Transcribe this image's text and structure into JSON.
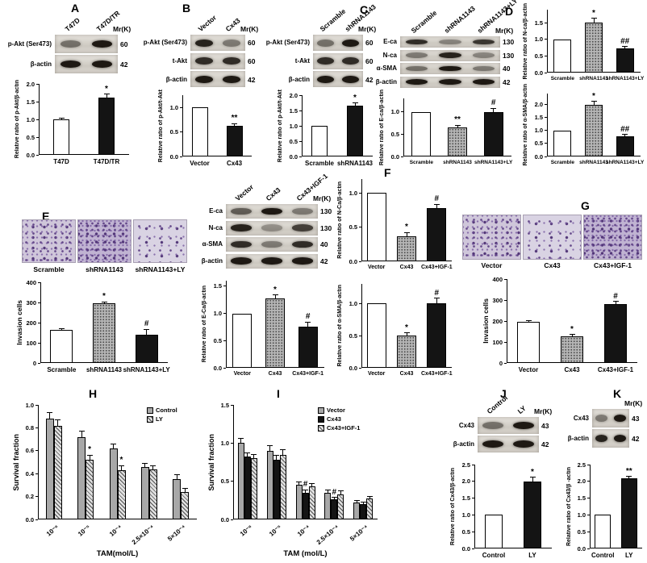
{
  "panel_letters": {
    "A": "A",
    "B": "B",
    "C": "C",
    "D": "D",
    "E": "E",
    "F": "F",
    "G": "G",
    "H": "H",
    "I": "I",
    "J": "J",
    "K": "K"
  },
  "blots": {
    "A": {
      "mr_title": "Mr(K)",
      "lanes": [
        "T47D",
        "T47D/TR"
      ],
      "rows": [
        {
          "label": "p-Akt (Ser473)",
          "mr": "60",
          "bands": [
            0.5,
            0.95
          ]
        },
        {
          "label": "β-actin",
          "mr": "42",
          "bands": [
            0.95,
            0.95
          ]
        }
      ]
    },
    "B": {
      "mr_title": "Mr(K)",
      "lanes": [
        "Vector",
        "Cx43"
      ],
      "rows": [
        {
          "label": "p-Akt (Ser473)",
          "mr": "60",
          "bands": [
            0.9,
            0.45
          ]
        },
        {
          "label": "t-Akt",
          "mr": "60",
          "bands": [
            0.85,
            0.85
          ]
        },
        {
          "label": "β-actin",
          "mr": "42",
          "bands": [
            0.95,
            0.95
          ]
        }
      ]
    },
    "C": {
      "mr_title": "Mr(K)",
      "lanes": [
        "Scramble",
        "shRNA1143"
      ],
      "rows": [
        {
          "label": "p-Akt (Ser473)",
          "mr": "60",
          "bands": [
            0.5,
            0.95
          ]
        },
        {
          "label": "t-Akt",
          "mr": "60",
          "bands": [
            0.85,
            0.85
          ]
        },
        {
          "label": "β-actin",
          "mr": "42",
          "bands": [
            0.95,
            0.95
          ]
        }
      ]
    },
    "D": {
      "mr_title": "Mr(K)",
      "lanes": [
        "Scramble",
        "shRNA1143",
        "shRNA1143+LY"
      ],
      "rows": [
        {
          "label": "E-ca",
          "mr": "130",
          "bands": [
            0.85,
            0.4,
            0.8
          ]
        },
        {
          "label": "N-ca",
          "mr": "130",
          "bands": [
            0.45,
            0.9,
            0.4
          ]
        },
        {
          "label": "α-SMA",
          "mr": "40",
          "bands": [
            0.5,
            0.95,
            0.45
          ]
        },
        {
          "label": "β-actin",
          "mr": "42",
          "bands": [
            0.95,
            0.95,
            0.95
          ]
        }
      ]
    },
    "M": {
      "mr_title": "Mr(K)",
      "lanes": [
        "Vector",
        "Cx43",
        "Cx43+IGF-1"
      ],
      "rows": [
        {
          "label": "E-ca",
          "mr": "130",
          "bands": [
            0.6,
            0.95,
            0.45
          ]
        },
        {
          "label": "N-ca",
          "mr": "130",
          "bands": [
            0.9,
            0.35,
            0.75
          ]
        },
        {
          "label": "α-SMA",
          "mr": "40",
          "bands": [
            0.85,
            0.45,
            0.85
          ]
        },
        {
          "label": "β-actin",
          "mr": "42",
          "bands": [
            0.95,
            0.95,
            0.95
          ]
        }
      ]
    },
    "J": {
      "mr_title": "Mr(K)",
      "lanes": [
        "Control",
        "LY"
      ],
      "rows": [
        {
          "label": "Cx43",
          "mr": "43",
          "bands": [
            0.5,
            0.95
          ]
        },
        {
          "label": "β-actin",
          "mr": "42",
          "bands": [
            0.95,
            0.95
          ]
        }
      ]
    },
    "K": {
      "mr_title": "Mr(K)",
      "lanes": [],
      "rows": [
        {
          "label": "Cx43",
          "mr": "43",
          "bands": [
            0.45,
            0.95
          ]
        },
        {
          "label": "β-actin",
          "mr": "42",
          "bands": [
            0.9,
            0.95
          ]
        }
      ]
    }
  },
  "micrographs": {
    "E": {
      "labels": [
        "Scramble",
        "shRNA1143",
        "shRNA1143+LY"
      ]
    },
    "G": {
      "labels": [
        "Vector",
        "Cx43",
        "Cx43+IGF-1"
      ]
    }
  },
  "charts": {
    "A": {
      "type": "bar",
      "ylabel": "Relative ratio of p-Akt/β-actin",
      "ymax": 2.0,
      "yticks": [
        "0.0",
        "0.5",
        "1.0",
        "1.5",
        "2.0"
      ],
      "categories": [
        "T47D",
        "T47D/TR"
      ],
      "series": [
        {
          "fill": [
            "white",
            "black"
          ],
          "values": [
            1.0,
            1.62
          ],
          "errs": [
            0.04,
            0.09
          ],
          "marks": [
            "",
            "*"
          ]
        }
      ]
    },
    "B": {
      "type": "bar",
      "ylabel": "Relative ratio of p-Akt/t-Akt",
      "ymax": 1.25,
      "yticks": [
        "0.0",
        "0.5",
        "1.0"
      ],
      "categories": [
        "Vector",
        "Cx43"
      ],
      "series": [
        {
          "fill": [
            "white",
            "black"
          ],
          "values": [
            1.0,
            0.62
          ],
          "errs": [
            0.0,
            0.05
          ],
          "marks": [
            "",
            "**"
          ]
        }
      ]
    },
    "C": {
      "type": "bar",
      "ylabel": "Relative ratio of p-Akt/t-Akt",
      "ymax": 2.0,
      "yticks": [
        "0.0",
        "0.5",
        "1.0",
        "1.5",
        "2.0"
      ],
      "categories": [
        "Scramble",
        "shRNA1143"
      ],
      "series": [
        {
          "fill": [
            "white",
            "black"
          ],
          "values": [
            1.0,
            1.65
          ],
          "errs": [
            0.0,
            0.09
          ],
          "marks": [
            "",
            "*"
          ]
        }
      ]
    },
    "D_E": {
      "type": "bar",
      "ylabel": "Relative ratio of E-ca/β-actin",
      "ymax": 1.3,
      "yticks": [
        "0.0",
        "0.5",
        "1.0"
      ],
      "categories": [
        "Scramble",
        "shRNA1143",
        "shRNA1143+LY"
      ],
      "series": [
        {
          "fill": [
            "white",
            "dots",
            "black"
          ],
          "values": [
            1.0,
            0.65,
            1.0
          ],
          "errs": [
            0.0,
            0.05,
            0.08
          ],
          "marks": [
            "",
            "**",
            "#"
          ]
        }
      ]
    },
    "D_N": {
      "type": "bar",
      "ylabel": "Relative ratio of N-ca/β-actin",
      "ymax": 1.9,
      "yticks": [
        "0.0",
        "0.5",
        "1.0",
        "1.5"
      ],
      "categories": [
        "Scramble",
        "shRNA1143",
        "shRNA1143+LY"
      ],
      "series": [
        {
          "fill": [
            "white",
            "dots",
            "black"
          ],
          "values": [
            1.0,
            1.5,
            0.73
          ],
          "errs": [
            0.0,
            0.14,
            0.05
          ],
          "marks": [
            "",
            "*",
            "##"
          ]
        }
      ]
    },
    "D_S": {
      "type": "bar",
      "ylabel": "Relative ratio of α-SMA/β-actin",
      "ymax": 2.4,
      "yticks": [
        "0.0",
        "0.5",
        "1.0",
        "1.5",
        "2.0"
      ],
      "categories": [
        "Scramble",
        "shRNA1143",
        "shRNA1143+LY"
      ],
      "series": [
        {
          "fill": [
            "white",
            "dots",
            "black"
          ],
          "values": [
            1.0,
            1.98,
            0.78
          ],
          "errs": [
            0.0,
            0.12,
            0.06
          ],
          "marks": [
            "",
            "*",
            "##"
          ]
        }
      ]
    },
    "E": {
      "type": "bar",
      "ylabel": "Invasion cells",
      "ymax": 400,
      "yticks": [
        "0",
        "100",
        "200",
        "300",
        "400"
      ],
      "categories": [
        "Scramble",
        "shRNA1143",
        "shRNA1143+LY"
      ],
      "series": [
        {
          "fill": [
            "white",
            "dots",
            "black"
          ],
          "values": [
            163,
            295,
            140
          ],
          "errs": [
            8,
            8,
            28
          ],
          "marks": [
            "",
            "*",
            "#"
          ]
        }
      ]
    },
    "M": {
      "type": "bar",
      "ylabel": "Relative ratio of E-Ca/β-actin",
      "ymax": 1.6,
      "yticks": [
        "0.0",
        "0.5",
        "1.0",
        "1.5"
      ],
      "categories": [
        "Vector",
        "Cx43",
        "Cx43+IGF-1"
      ],
      "series": [
        {
          "fill": [
            "white",
            "dots",
            "black"
          ],
          "values": [
            1.0,
            1.28,
            0.75
          ],
          "errs": [
            0.0,
            0.06,
            0.09
          ],
          "marks": [
            "",
            "*",
            "#"
          ]
        }
      ]
    },
    "F_N": {
      "type": "bar",
      "ylabel": "Relative ratio of N-Ca/β-actin",
      "ymax": 1.2,
      "yticks": [
        "0.0",
        "0.5",
        "1.0"
      ],
      "categories": [
        "Vector",
        "Cx43",
        "Cx43+IGF-1"
      ],
      "series": [
        {
          "fill": [
            "white",
            "dots",
            "black"
          ],
          "values": [
            1.0,
            0.37,
            0.78
          ],
          "errs": [
            0.0,
            0.05,
            0.05
          ],
          "marks": [
            "",
            "*",
            "#"
          ]
        }
      ]
    },
    "F_S": {
      "type": "bar",
      "ylabel": "Relative ratio of α-SMA/β-actin",
      "ymax": 1.3,
      "yticks": [
        "0.0",
        "0.5",
        "1.0"
      ],
      "categories": [
        "Vector",
        "Cx43",
        "Cx43+IGF-1"
      ],
      "series": [
        {
          "fill": [
            "white",
            "dots",
            "black"
          ],
          "values": [
            1.0,
            0.5,
            1.0
          ],
          "errs": [
            0.0,
            0.04,
            0.08
          ],
          "marks": [
            "",
            "*",
            "#"
          ]
        }
      ]
    },
    "G": {
      "type": "bar",
      "ylabel": "Invasion cells",
      "ymax": 400,
      "yticks": [
        "0",
        "100",
        "200",
        "300",
        "400"
      ],
      "categories": [
        "Vector",
        "Cx43",
        "Cx43+IGF-1"
      ],
      "series": [
        {
          "fill": [
            "white",
            "dots",
            "black"
          ],
          "values": [
            196,
            126,
            282
          ],
          "errs": [
            6,
            10,
            12
          ],
          "marks": [
            "",
            "*",
            "#"
          ]
        }
      ]
    },
    "H": {
      "type": "bar",
      "ylabel": "Survival fraction",
      "xlabel": "TAM(mol/L)",
      "ymax": 1.0,
      "yticks": [
        "0.0",
        "0.2",
        "0.4",
        "0.6",
        "0.8",
        "1.0"
      ],
      "categories": [
        "10⁻⁶",
        "10⁻⁵",
        "10⁻⁴",
        "2.5×10⁻⁴",
        "5×10⁻⁴"
      ],
      "legend": true,
      "series": [
        {
          "name": "Control",
          "fill": "gray",
          "values": [
            0.88,
            0.72,
            0.62,
            0.46,
            0.35
          ],
          "errs": [
            0.05,
            0.05,
            0.04,
            0.03,
            0.04
          ],
          "marks": [
            "",
            "",
            "",
            "",
            ""
          ]
        },
        {
          "name": "LY",
          "fill": "hatch",
          "values": [
            0.82,
            0.52,
            0.43,
            0.44,
            0.24
          ],
          "errs": [
            0.05,
            0.04,
            0.04,
            0.03,
            0.03
          ],
          "marks": [
            "",
            "*",
            "*",
            "",
            ""
          ]
        }
      ]
    },
    "I": {
      "type": "bar",
      "ylabel": "Survival fraction",
      "xlabel": "TAM (mol/L)",
      "ymax": 1.5,
      "yticks": [
        "0.0",
        "0.5",
        "1.0",
        "1.5"
      ],
      "categories": [
        "10⁻⁶",
        "10⁻⁵",
        "10⁻⁴",
        "2.5×10⁻⁴",
        "5×10⁻⁴"
      ],
      "legend": true,
      "series": [
        {
          "name": "Vector",
          "fill": "gray",
          "values": [
            1.0,
            0.9,
            0.45,
            0.35,
            0.22
          ],
          "errs": [
            0.06,
            0.07,
            0.04,
            0.04,
            0.03
          ],
          "marks": [
            "",
            "",
            "",
            "",
            ""
          ]
        },
        {
          "name": "Cx43",
          "fill": "black",
          "values": [
            0.82,
            0.78,
            0.35,
            0.26,
            0.2
          ],
          "errs": [
            0.05,
            0.06,
            0.04,
            0.03,
            0.03
          ],
          "marks": [
            "",
            "",
            "#",
            "#",
            ""
          ]
        },
        {
          "name": "Cx43+IGF-1",
          "fill": "hatch",
          "values": [
            0.8,
            0.85,
            0.43,
            0.33,
            0.27
          ],
          "errs": [
            0.05,
            0.06,
            0.04,
            0.04,
            0.03
          ],
          "marks": [
            "",
            "",
            "",
            "",
            ""
          ]
        }
      ]
    },
    "J": {
      "type": "bar",
      "ylabel": "Relative ratio of Cx43/β-actin",
      "ymax": 2.5,
      "yticks": [
        "0.0",
        "0.5",
        "1.0",
        "1.5",
        "2.0",
        "2.5"
      ],
      "categories": [
        "Control",
        "LY"
      ],
      "series": [
        {
          "fill": [
            "white",
            "black"
          ],
          "values": [
            1.0,
            2.0
          ],
          "errs": [
            0.0,
            0.12
          ],
          "marks": [
            "",
            "*"
          ]
        }
      ]
    },
    "K": {
      "type": "bar",
      "ylabel": "Relative ratio of Cx43/β -actin",
      "ymax": 2.5,
      "yticks": [
        "0.0",
        "0.5",
        "1.0",
        "1.5",
        "2.0",
        "2.5"
      ],
      "categories": [
        "Control",
        "LY"
      ],
      "series": [
        {
          "fill": [
            "white",
            "black"
          ],
          "values": [
            1.0,
            2.08
          ],
          "errs": [
            0.0,
            0.07
          ],
          "marks": [
            "",
            "**"
          ]
        }
      ]
    }
  }
}
